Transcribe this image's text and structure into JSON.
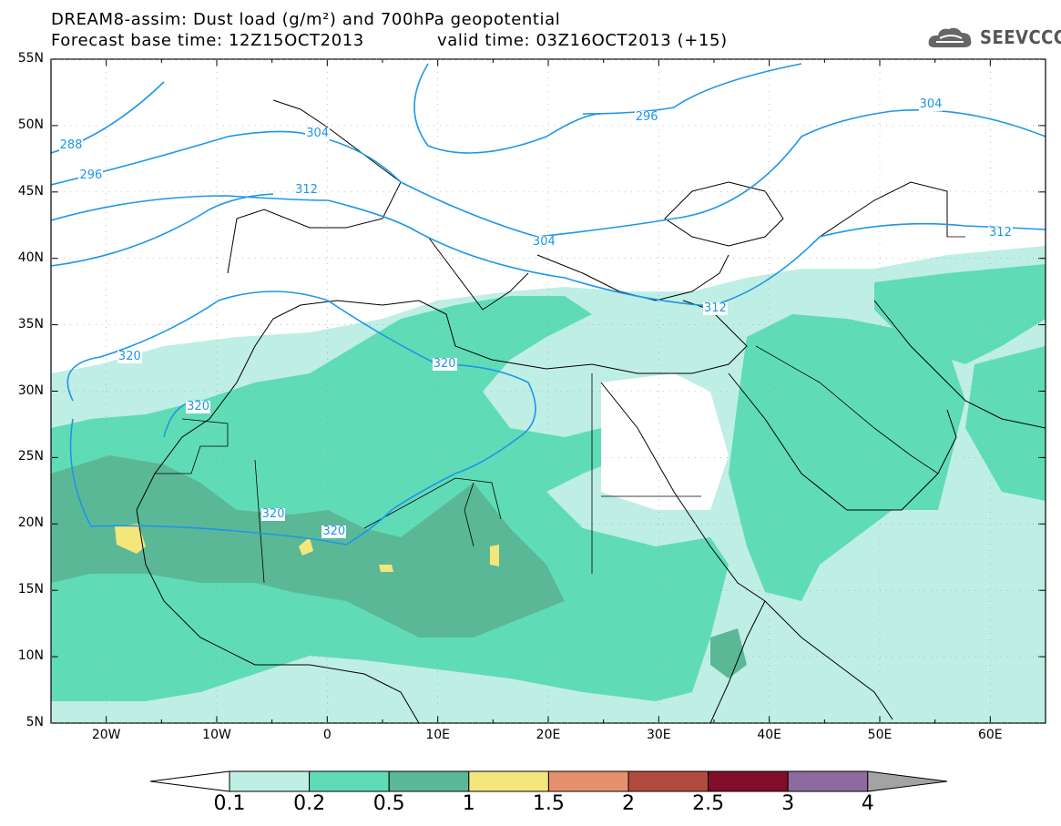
{
  "header": {
    "title_line1": "DREAM8-assim: Dust load (g/m²) and 700hPa geopotential",
    "title_line2": "Forecast base time: 12Z15OCT2013",
    "valid_time": "valid time: 03Z16OCT2013 (+15)",
    "logo_text": "SEEVCCC"
  },
  "map": {
    "lat_labels": [
      "55N",
      "50N",
      "45N",
      "40N",
      "35N",
      "30N",
      "25N",
      "20N",
      "15N",
      "10N",
      "5N"
    ],
    "lon_labels": [
      "20W",
      "10W",
      "0",
      "10E",
      "20E",
      "30E",
      "40E",
      "50E",
      "60E"
    ],
    "lon_range": [
      -25,
      65
    ],
    "lat_range": [
      5,
      55
    ],
    "contour_labels": [
      {
        "text": "288",
        "lon": -23.3,
        "lat": 48.5
      },
      {
        "text": "296",
        "lon": -21.5,
        "lat": 46.2
      },
      {
        "text": "304",
        "lon": -1.0,
        "lat": 49.4
      },
      {
        "text": "312",
        "lon": -2.0,
        "lat": 45.1
      },
      {
        "text": "296",
        "lon": 28.8,
        "lat": 50.6
      },
      {
        "text": "304",
        "lon": 54.5,
        "lat": 51.6
      },
      {
        "text": "312",
        "lon": 60.8,
        "lat": 41.9
      },
      {
        "text": "304",
        "lon": 19.5,
        "lat": 41.2
      },
      {
        "text": "312",
        "lon": 35.0,
        "lat": 36.2
      },
      {
        "text": "320",
        "lon": -18.0,
        "lat": 32.6
      },
      {
        "text": "320",
        "lon": -11.8,
        "lat": 28.8
      },
      {
        "text": "320",
        "lon": 10.5,
        "lat": 32.0
      },
      {
        "text": "320",
        "lon": -5.0,
        "lat": 20.7
      },
      {
        "text": "320",
        "lon": 0.5,
        "lat": 19.4
      }
    ]
  },
  "colorbar": {
    "levels": [
      "0.1",
      "0.2",
      "0.5",
      "1",
      "1.5",
      "2",
      "2.5",
      "3",
      "4"
    ],
    "colors": [
      "#bfeee4",
      "#5fdcb6",
      "#5bb896",
      "#f3e67a",
      "#e7906e",
      "#b04b3e",
      "#800e2b",
      "#8e6a9e"
    ],
    "under_color": "#ffffff",
    "over_color": "#a3a3a3"
  }
}
